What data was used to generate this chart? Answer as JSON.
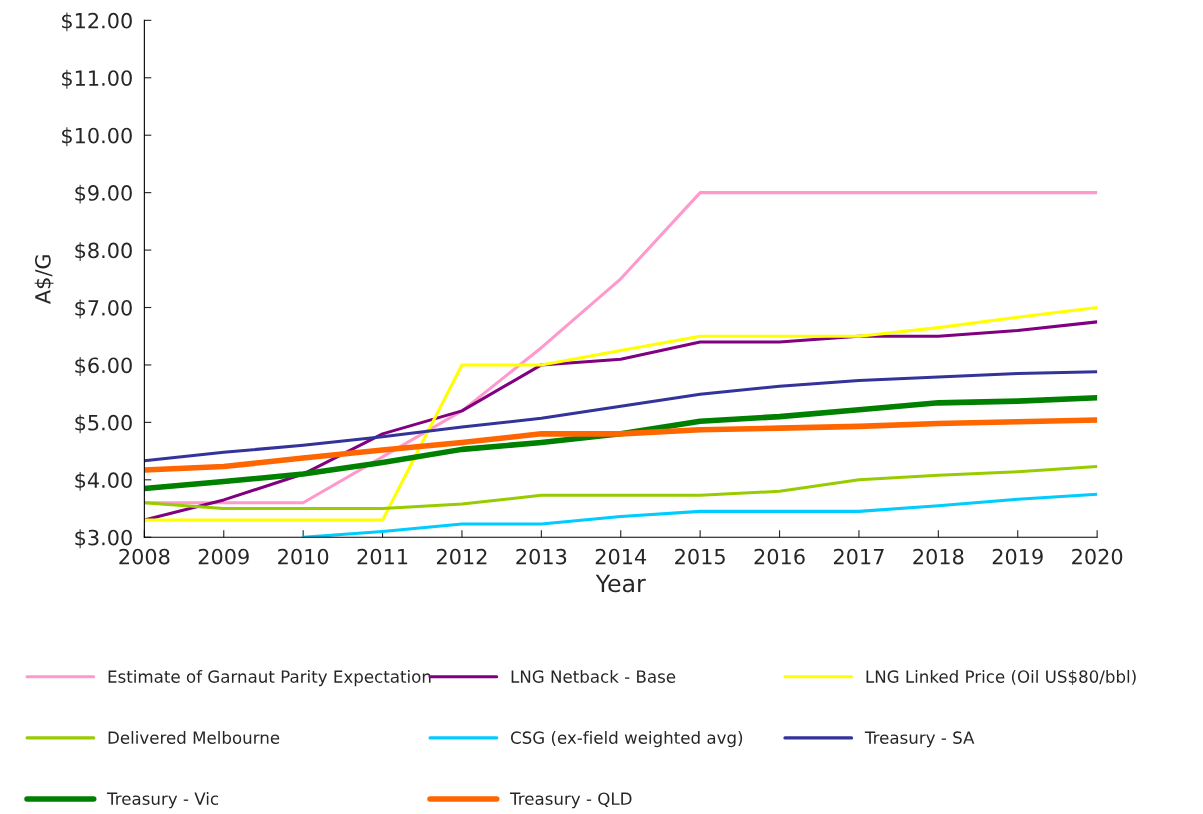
{
  "chart_data": {
    "type": "line",
    "xlabel": "Year",
    "ylabel": "A$/G",
    "x": [
      2008,
      2009,
      2010,
      2011,
      2012,
      2013,
      2014,
      2015,
      2016,
      2017,
      2018,
      2019,
      2020
    ],
    "xlim": [
      2008,
      2020
    ],
    "xticks": [
      2008,
      2009,
      2010,
      2011,
      2012,
      2013,
      2014,
      2015,
      2016,
      2017,
      2018,
      2019,
      2020
    ],
    "ylim": [
      3,
      12
    ],
    "yticks": [
      {
        "value": 3,
        "label": "$3.00"
      },
      {
        "value": 4,
        "label": "$4.00"
      },
      {
        "value": 5,
        "label": "$5.00"
      },
      {
        "value": 6,
        "label": "$6.00"
      },
      {
        "value": 7,
        "label": "$7.00"
      },
      {
        "value": 8,
        "label": "$8.00"
      },
      {
        "value": 9,
        "label": "$9.00"
      },
      {
        "value": 10,
        "label": "$10.00"
      },
      {
        "value": 11,
        "label": "$11.00"
      },
      {
        "value": 12,
        "label": "$12.00"
      }
    ],
    "grid": false,
    "legend": "bottom",
    "marker": "none",
    "line_style": "solid",
    "series": [
      {
        "name": "Estimate of Garnaut Parity Expectation",
        "color": "#ff99cc",
        "values": [
          3.6,
          3.6,
          3.6,
          4.4,
          5.2,
          6.3,
          7.5,
          9.0,
          9.0,
          9.0,
          9.0,
          9.0,
          9.0
        ]
      },
      {
        "name": "LNG Netback - Base",
        "color": "#800080",
        "values": [
          3.3,
          3.65,
          4.1,
          4.8,
          5.2,
          6.0,
          6.1,
          6.4,
          6.4,
          6.5,
          6.5,
          6.6,
          6.75
        ]
      },
      {
        "name": "LNG Linked Price (Oil US$80/bbl)",
        "color": "#ffff00",
        "values": [
          3.3,
          3.3,
          3.3,
          3.3,
          6.0,
          6.0,
          6.25,
          6.5,
          6.5,
          6.5,
          6.65,
          6.83,
          7.0
        ]
      },
      {
        "name": "Delivered Melbourne",
        "color": "#99cc00",
        "values": [
          3.6,
          3.5,
          3.5,
          3.5,
          3.58,
          3.73,
          3.73,
          3.73,
          3.8,
          4.0,
          4.08,
          4.14,
          4.23
        ]
      },
      {
        "name": "CSG (ex-field weighted avg)",
        "color": "#00ccff",
        "values": [
          null,
          null,
          3.0,
          3.1,
          3.23,
          3.23,
          3.36,
          3.45,
          3.45,
          3.45,
          3.55,
          3.66,
          3.75
        ]
      },
      {
        "name": "Treasury - SA",
        "color": "#333399",
        "values": [
          4.33,
          4.48,
          4.6,
          4.75,
          4.92,
          5.07,
          5.28,
          5.49,
          5.63,
          5.73,
          5.79,
          5.85,
          5.88
        ]
      },
      {
        "name": "Treasury - Vic",
        "color": "#008000",
        "values": [
          3.85,
          3.97,
          4.1,
          4.3,
          4.53,
          4.65,
          4.8,
          5.02,
          5.1,
          5.22,
          5.34,
          5.37,
          5.43
        ]
      },
      {
        "name": "Treasury - QLD",
        "color": "#ff6600",
        "values": [
          4.17,
          4.23,
          4.38,
          4.52,
          4.65,
          4.8,
          4.8,
          4.87,
          4.9,
          4.93,
          4.98,
          5.01,
          5.04
        ]
      }
    ]
  }
}
